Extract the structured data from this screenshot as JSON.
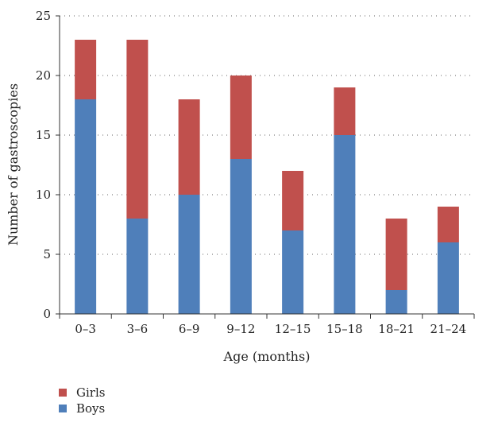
{
  "chart_data": {
    "type": "bar",
    "stacked": true,
    "categories": [
      "0–3",
      "3–6",
      "6–9",
      "9–12",
      "12–15",
      "15–18",
      "18–21",
      "21–24"
    ],
    "series": [
      {
        "name": "Boys",
        "color": "#4f7fba",
        "values": [
          18,
          8,
          10,
          13,
          7,
          15,
          2,
          6
        ]
      },
      {
        "name": "Girls",
        "color": "#c0504d",
        "values": [
          5,
          15,
          8,
          7,
          5,
          4,
          6,
          3
        ]
      }
    ],
    "title": "",
    "xlabel": "Age (months)",
    "ylabel": "Number of gastroscopies",
    "ylim": [
      0,
      25
    ],
    "yticks": [
      0,
      5,
      10,
      15,
      20,
      25
    ],
    "grid": "horizontal-dotted",
    "legend": {
      "placement": "bottom-left",
      "order": [
        "Girls",
        "Boys"
      ]
    }
  }
}
